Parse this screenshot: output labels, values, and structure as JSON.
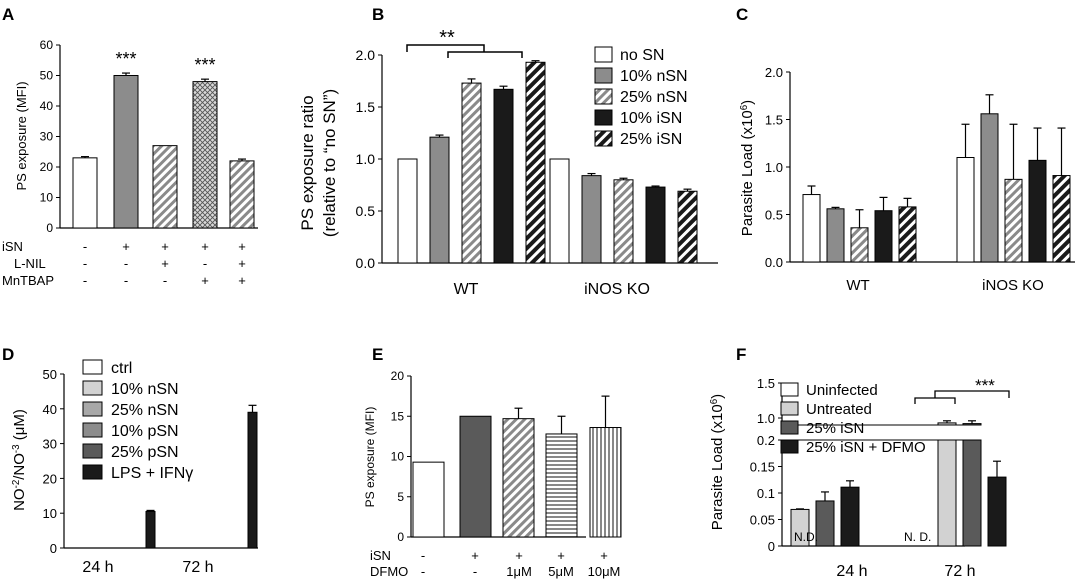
{
  "panels": {
    "A": "A",
    "B": "B",
    "C": "C",
    "D": "D",
    "E": "E",
    "F": "F"
  },
  "colors": {
    "white": "#ffffff",
    "light": "#d2d2d2",
    "mid": "#8c8c8c",
    "dark": "#5a5a5a",
    "darker": "#3c3c3c",
    "black": "#1a1a1a"
  },
  "chart_data": [
    {
      "id": "A",
      "type": "bar",
      "ylabel": "PS exposure (MFI)",
      "ylim": [
        0,
        60
      ],
      "yticks": [
        0,
        10,
        20,
        30,
        40,
        50,
        60
      ],
      "values": [
        23,
        50,
        27,
        48,
        22
      ],
      "errors": [
        0.4,
        0.8,
        0,
        0.8,
        0.6
      ],
      "patterns": [
        "white",
        "mid",
        "hatch",
        "cross",
        "hatch"
      ],
      "annotations": [
        "",
        "***",
        "",
        "***",
        ""
      ],
      "conditions": [
        {
          "label": "iSN",
          "signs": [
            "-",
            "+",
            "+",
            "+",
            "+"
          ]
        },
        {
          "label": "L-NIL",
          "signs": [
            "-",
            "-",
            "+",
            "-",
            "+"
          ]
        },
        {
          "label": "MnTBAP",
          "signs": [
            "-",
            "-",
            "-",
            "+",
            "+"
          ]
        }
      ]
    },
    {
      "id": "B",
      "type": "bar",
      "ylabel": "PS exposure ratio",
      "ylabel2": "(relative to “no SN”)",
      "ylim": [
        0,
        2.0
      ],
      "yticks": [
        "0.0",
        "0.5",
        "1.0",
        "1.5",
        "2.0"
      ],
      "groups": [
        "WT",
        "iNOS KO"
      ],
      "series": [
        {
          "name": "no SN",
          "pattern": "white",
          "values": [
            1.0,
            1.0
          ],
          "errors": [
            0,
            0
          ]
        },
        {
          "name": "10% nSN",
          "pattern": "mid",
          "values": [
            1.21,
            0.84
          ],
          "errors": [
            0.02,
            0.02
          ]
        },
        {
          "name": "25% nSN",
          "pattern": "hatch",
          "values": [
            1.73,
            0.8
          ],
          "errors": [
            0.04,
            0.015
          ]
        },
        {
          "name": "10% iSN",
          "pattern": "black",
          "values": [
            1.67,
            0.73
          ],
          "errors": [
            0.03,
            0.01
          ]
        },
        {
          "name": "25% iSN",
          "pattern": "hatchdark",
          "values": [
            1.93,
            0.69
          ],
          "errors": [
            0.015,
            0.02
          ]
        }
      ],
      "annotation": "**"
    },
    {
      "id": "C",
      "type": "bar",
      "ylabel": "Parasite Load (x10",
      "ylabel_sup": "6",
      "ylabel_end": ")",
      "ylim": [
        0,
        2.0
      ],
      "yticks": [
        "0.0",
        "0.5",
        "1.0",
        "1.5",
        "2.0"
      ],
      "groups": [
        "WT",
        "iNOS KO"
      ],
      "series": [
        {
          "pattern": "white",
          "values": [
            0.71,
            1.1
          ],
          "errors": [
            0.09,
            0.35
          ]
        },
        {
          "pattern": "mid",
          "values": [
            0.56,
            1.56
          ],
          "errors": [
            0.015,
            0.2
          ]
        },
        {
          "pattern": "hatch",
          "values": [
            0.36,
            0.87
          ],
          "errors": [
            0.19,
            0.58
          ]
        },
        {
          "pattern": "black",
          "values": [
            0.54,
            1.07
          ],
          "errors": [
            0.14,
            0.34
          ]
        },
        {
          "pattern": "hatchdark",
          "values": [
            0.58,
            0.91
          ],
          "errors": [
            0.09,
            0.5
          ]
        }
      ]
    },
    {
      "id": "D",
      "type": "bar",
      "ylabel": "NO",
      "ylabel_sup1": "-2",
      "ylabel_mid": "/NO",
      "ylabel_sup2": "-3",
      "ylabel_end": " (μM)",
      "ylim": [
        0,
        50
      ],
      "yticks": [
        0,
        10,
        20,
        30,
        40,
        50
      ],
      "groups": [
        "24 h",
        "72 h"
      ],
      "series": [
        {
          "name": "ctrl",
          "pattern": "white",
          "values": [
            0,
            0
          ],
          "errors": [
            0,
            0
          ]
        },
        {
          "name": "10% nSN",
          "pattern": "light",
          "values": [
            0,
            0
          ],
          "errors": [
            0,
            0
          ]
        },
        {
          "name": "25% nSN",
          "pattern": "lightmid",
          "values": [
            0,
            0
          ],
          "errors": [
            0,
            0
          ]
        },
        {
          "name": "10% pSN",
          "pattern": "mid",
          "values": [
            0,
            0
          ],
          "errors": [
            0,
            0
          ]
        },
        {
          "name": "25% pSN",
          "pattern": "dark",
          "values": [
            0,
            0
          ],
          "errors": [
            0,
            0
          ]
        },
        {
          "name": "LPS + IFNγ",
          "pattern": "black",
          "values": [
            10.5,
            39
          ],
          "errors": [
            0.3,
            2
          ]
        }
      ]
    },
    {
      "id": "E",
      "type": "bar",
      "ylabel": "PS exposure (MFI)",
      "ylim": [
        0,
        20
      ],
      "yticks": [
        0,
        5,
        10,
        15,
        20
      ],
      "values": [
        9.3,
        15,
        14.7,
        12.8,
        13.6
      ],
      "errors": [
        0,
        0,
        1.3,
        2.2,
        3.9
      ],
      "patterns": [
        "white",
        "dark",
        "hatch",
        "hstripe",
        "vstripe"
      ],
      "conditions": [
        {
          "label": "iSN",
          "signs": [
            "-",
            "+",
            "+",
            "+",
            "+"
          ]
        },
        {
          "label": "DFMO",
          "signs": [
            "-",
            "-",
            "1μM",
            "5μM",
            "10μM"
          ]
        }
      ]
    },
    {
      "id": "F",
      "type": "bar",
      "ylabel": "Parasite Load (x10",
      "ylabel_sup": "6",
      "ylabel_end": ")",
      "yticks_upper": [
        "1.0",
        "1.5"
      ],
      "yticks_lower": [
        "0",
        "0.05",
        "0.1",
        "0.15",
        "0.2"
      ],
      "groups": [
        "24 h",
        "72 h"
      ],
      "nd_label": "N.D.",
      "nd_label2": "N. D.",
      "series": [
        {
          "name": "Uninfected",
          "pattern": "white",
          "values": [
            0,
            0
          ],
          "errors": [
            0,
            0
          ]
        },
        {
          "name": "Untreated",
          "pattern": "light",
          "values": [
            0.069,
            0.93
          ],
          "errors": [
            0.001,
            0.03
          ]
        },
        {
          "name": "25% iSN",
          "pattern": "dark",
          "values": [
            0.085,
            0.92
          ],
          "errors": [
            0.017,
            0.04
          ]
        },
        {
          "name": "25% iSN + DFMO",
          "pattern": "black",
          "values": [
            0.111,
            0.13
          ],
          "errors": [
            0.012,
            0.03
          ]
        }
      ],
      "annotation": "***"
    }
  ]
}
